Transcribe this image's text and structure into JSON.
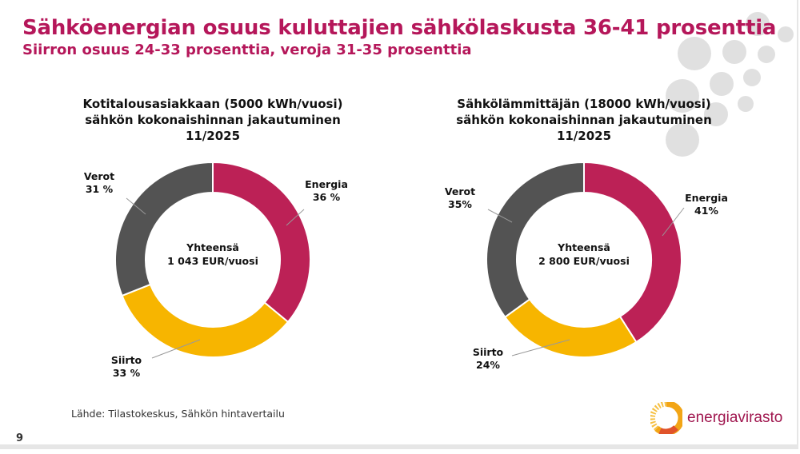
{
  "title": "Sähköenergian osuus kuluttajien sähkölaskusta 36-41 prosenttia",
  "subtitle": "Siirron osuus 24-33 prosenttia, veroja 31-35 prosenttia",
  "source": "Lähde: Tilastokeskus, Sähkön hintavertailu",
  "page_number": "9",
  "logo_text": "energiavirasto",
  "colors": {
    "Energia": "#bc2156",
    "Siirto": "#f7b500",
    "Verot": "#535353",
    "title": "#b5175a"
  },
  "chart_data": [
    {
      "type": "pie",
      "variant": "donut",
      "title_lines": [
        "Kotitalousasiakkaan (5000 kWh/vuosi)",
        "sähkön kokonaishinnan jakautuminen",
        "11/2025"
      ],
      "categories": [
        "Energia",
        "Siirto",
        "Verot"
      ],
      "values": [
        36,
        33,
        31
      ],
      "value_labels": [
        "36 %",
        "33 %",
        "31 %"
      ],
      "center_label": [
        "Yhteensä",
        "1 043 EUR/vuosi"
      ]
    },
    {
      "type": "pie",
      "variant": "donut",
      "title_lines": [
        "Sähkölämmittäjän (18000 kWh/vuosi)",
        "sähkön kokonaishinnan jakautuminen",
        "11/2025"
      ],
      "categories": [
        "Energia",
        "Siirto",
        "Verot"
      ],
      "values": [
        41,
        24,
        35
      ],
      "value_labels": [
        "41%",
        "24%",
        "35%"
      ],
      "center_label": [
        "Yhteensä",
        "2 800 EUR/vuosi"
      ]
    }
  ]
}
